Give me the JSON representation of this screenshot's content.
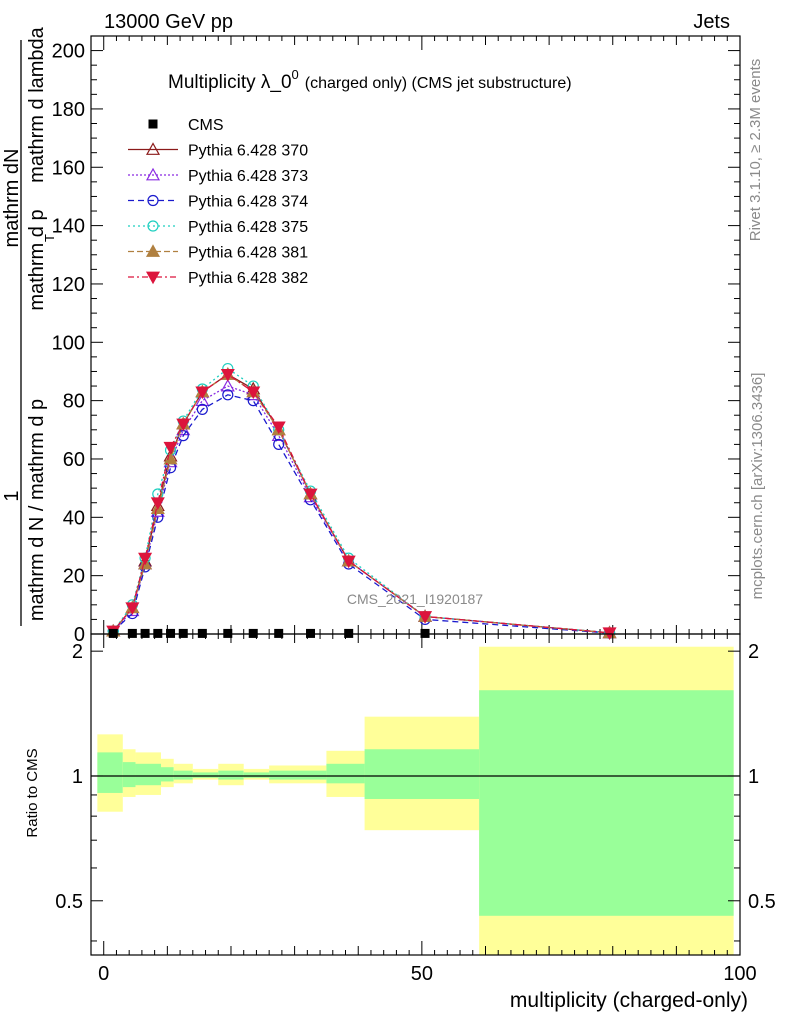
{
  "header": {
    "left": "13000 GeV pp",
    "right": "Jets"
  },
  "side_labels": {
    "rivet": "Rivet 3.1.10, ≥ 2.3M events",
    "mcplots": "mcplots.cern.ch [arXiv:1306.3436]"
  },
  "top_panel": {
    "title_main": "Multiplicity λ_0",
    "title_sup": "0",
    "title_suffix": "(charged only) (CMS jet substructure)",
    "ylabel_numerator": "1",
    "ylabel_numerator_inner": "mathrm dN",
    "ylabel_denominator": "mathrm d N / mathrm d p",
    "ylabel_denominator_inner": "mathrm d p",
    "ylabel_rest": "mathrm d lambda",
    "ylabel_sub": "T",
    "watermark": "CMS_2021_I1920187"
  },
  "ratio_panel": {
    "ylabel": "Ratio to CMS"
  },
  "xlabel": "multiplicity (charged-only)",
  "colors": {
    "cms": "#000000",
    "p370": "#8b1a1a",
    "p373": "#8a2be2",
    "p374": "#1a1acd",
    "p375": "#1fcfc0",
    "p381": "#b08040",
    "p382": "#dc143c",
    "band_inner": "#99ff99",
    "band_outer": "#ffff99"
  },
  "legend": [
    {
      "key": "cms",
      "label": "CMS"
    },
    {
      "key": "p370",
      "label": "Pythia 6.428 370"
    },
    {
      "key": "p373",
      "label": "Pythia 6.428 373"
    },
    {
      "key": "p374",
      "label": "Pythia 6.428 374"
    },
    {
      "key": "p375",
      "label": "Pythia 6.428 375"
    },
    {
      "key": "p381",
      "label": "Pythia 6.428 381"
    },
    {
      "key": "p382",
      "label": "Pythia 6.428 382"
    }
  ],
  "chart_data": [
    {
      "type": "line",
      "xlim": [
        -2,
        100
      ],
      "ylim": [
        0,
        205
      ],
      "yticks": [
        0,
        20,
        40,
        60,
        80,
        100,
        120,
        140,
        160,
        180,
        200
      ],
      "xticks": [
        0,
        50,
        100
      ],
      "cms": {
        "x": [
          1.5,
          4.5,
          6.5,
          8.5,
          10.5,
          12.5,
          15.5,
          19.5,
          23.5,
          27.5,
          32.5,
          38.5,
          50.5,
          79.5
        ],
        "y": [
          0.2,
          0.2,
          0.2,
          0.2,
          0.2,
          0.2,
          0.2,
          0.2,
          0.2,
          0.2,
          0.2,
          0.2,
          0.2,
          0.0
        ]
      },
      "series": [
        {
          "key": "p370",
          "name": "Pythia 6.428 370",
          "marker": "triangle-open",
          "x": [
            1.5,
            4.5,
            6.5,
            8.5,
            10.5,
            12.5,
            15.5,
            19.5,
            23.5,
            27.5,
            32.5,
            38.5,
            50.5,
            79.5
          ],
          "y": [
            1,
            9,
            25,
            44,
            61,
            72,
            83,
            89,
            84,
            70,
            48,
            25,
            6,
            0.4
          ]
        },
        {
          "key": "p373",
          "name": "Pythia 6.428 373",
          "marker": "triangle-open",
          "x": [
            1.5,
            4.5,
            6.5,
            8.5,
            10.5,
            12.5,
            15.5,
            19.5,
            23.5,
            27.5,
            32.5,
            38.5,
            50.5,
            79.5
          ],
          "y": [
            1,
            8,
            24,
            42,
            59,
            70,
            80,
            85,
            82,
            68,
            47,
            25,
            6,
            0.4
          ]
        },
        {
          "key": "p374",
          "name": "Pythia 6.428 374",
          "marker": "circle-open",
          "x": [
            1.5,
            4.5,
            6.5,
            8.5,
            10.5,
            12.5,
            15.5,
            19.5,
            23.5,
            27.5,
            32.5,
            38.5,
            50.5,
            79.5
          ],
          "y": [
            1,
            7,
            23,
            40,
            57,
            68,
            77,
            82,
            80,
            65,
            46,
            24,
            5,
            0.3
          ]
        },
        {
          "key": "p375",
          "name": "Pythia 6.428 375",
          "marker": "circle-open",
          "x": [
            1.5,
            4.5,
            6.5,
            8.5,
            10.5,
            12.5,
            15.5,
            19.5,
            23.5,
            27.5,
            32.5,
            38.5,
            50.5,
            79.5
          ],
          "y": [
            1,
            10,
            26,
            48,
            63,
            73,
            84,
            91,
            85,
            70,
            49,
            26,
            6,
            0.4
          ]
        },
        {
          "key": "p381",
          "name": "Pythia 6.428 381",
          "marker": "triangle-filled",
          "x": [
            1.5,
            4.5,
            6.5,
            8.5,
            10.5,
            12.5,
            15.5,
            19.5,
            23.5,
            27.5,
            32.5,
            38.5,
            50.5,
            79.5
          ],
          "y": [
            1,
            9,
            24,
            43,
            60,
            72,
            83,
            89,
            83,
            70,
            48,
            25,
            6,
            0.4
          ]
        },
        {
          "key": "p382",
          "name": "Pythia 6.428 382",
          "marker": "triangle-down-filled",
          "x": [
            1.5,
            4.5,
            6.5,
            8.5,
            10.5,
            12.5,
            15.5,
            19.5,
            23.5,
            27.5,
            32.5,
            38.5,
            50.5,
            79.5
          ],
          "y": [
            1,
            9,
            26,
            45,
            64,
            72,
            83,
            89,
            83,
            71,
            48,
            25,
            6,
            0.4
          ]
        }
      ]
    },
    {
      "type": "area",
      "title": "",
      "ylabel": "Ratio to CMS",
      "xlabel": "multiplicity (charged-only)",
      "xlim": [
        -2,
        100
      ],
      "ylim": [
        0.37,
        2.2
      ],
      "yticks": [
        0.5,
        1,
        2
      ],
      "xticks": [
        0,
        50,
        100
      ],
      "bins": [
        {
          "x0": -1,
          "x1": 3,
          "inner": [
            0.91,
            1.14
          ],
          "outer": [
            0.82,
            1.26
          ]
        },
        {
          "x0": 3,
          "x1": 5,
          "inner": [
            0.94,
            1.08
          ],
          "outer": [
            0.89,
            1.16
          ]
        },
        {
          "x0": 5,
          "x1": 9,
          "inner": [
            0.95,
            1.07
          ],
          "outer": [
            0.9,
            1.14
          ]
        },
        {
          "x0": 9,
          "x1": 11,
          "inner": [
            0.97,
            1.05
          ],
          "outer": [
            0.94,
            1.1
          ]
        },
        {
          "x0": 11,
          "x1": 14,
          "inner": [
            0.98,
            1.03
          ],
          "outer": [
            0.96,
            1.07
          ]
        },
        {
          "x0": 14,
          "x1": 18,
          "inner": [
            0.99,
            1.02
          ],
          "outer": [
            0.98,
            1.04
          ]
        },
        {
          "x0": 18,
          "x1": 22,
          "inner": [
            0.98,
            1.03
          ],
          "outer": [
            0.95,
            1.07
          ]
        },
        {
          "x0": 22,
          "x1": 26,
          "inner": [
            0.99,
            1.02
          ],
          "outer": [
            0.98,
            1.04
          ]
        },
        {
          "x0": 26,
          "x1": 35,
          "inner": [
            0.98,
            1.03
          ],
          "outer": [
            0.96,
            1.06
          ]
        },
        {
          "x0": 35,
          "x1": 41,
          "inner": [
            0.96,
            1.07
          ],
          "outer": [
            0.89,
            1.15
          ]
        },
        {
          "x0": 41,
          "x1": 59,
          "inner": [
            0.88,
            1.16
          ],
          "outer": [
            0.74,
            1.39
          ]
        },
        {
          "x0": 59,
          "x1": 99,
          "inner": [
            0.46,
            1.61
          ],
          "outer": [
            0.37,
            2.05
          ]
        }
      ]
    }
  ]
}
